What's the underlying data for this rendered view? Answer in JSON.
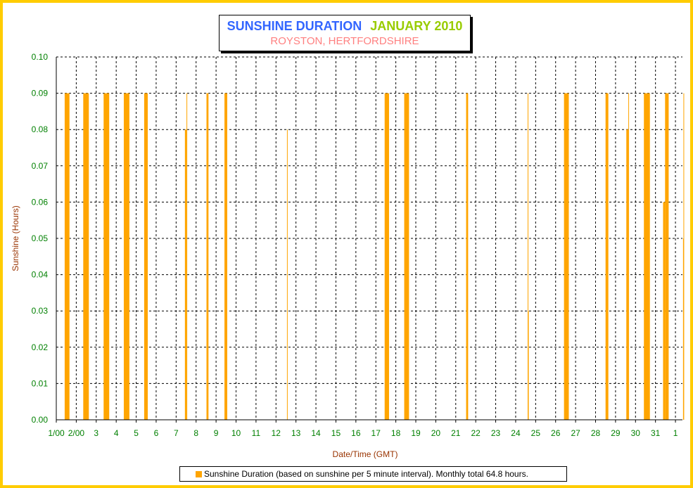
{
  "title": {
    "main": "SUNSHINE DURATION",
    "month": "JANUARY 2010",
    "subtitle": "ROYSTON, HERTFORDSHIRE"
  },
  "legend": {
    "label": "Sunshine Duration (based on sunshine per 5 minute interval). Monthly total 64.8 hours."
  },
  "colors": {
    "bars": "#ffa500",
    "axis_text": "#008000",
    "axis_title": "#993300",
    "frame": "#ffcc00"
  },
  "chart_data": {
    "type": "bar",
    "xlabel": "Date/Time (GMT)",
    "ylabel": "Sunshine (Hours)",
    "ylim": [
      0,
      0.1
    ],
    "xlim_days": [
      1,
      32.35
    ],
    "grid": true,
    "legend_position": "bottom",
    "y_ticks": [
      "0.00",
      "0.01",
      "0.02",
      "0.03",
      "0.04",
      "0.05",
      "0.06",
      "0.07",
      "0.08",
      "0.09",
      "0.10"
    ],
    "x_ticks": [
      {
        "day": 1,
        "label": "1/00"
      },
      {
        "day": 2,
        "label": "2/00"
      },
      {
        "day": 3,
        "label": "3"
      },
      {
        "day": 4,
        "label": "4"
      },
      {
        "day": 5,
        "label": "5"
      },
      {
        "day": 6,
        "label": "6"
      },
      {
        "day": 7,
        "label": "7"
      },
      {
        "day": 8,
        "label": "8"
      },
      {
        "day": 9,
        "label": "9"
      },
      {
        "day": 10,
        "label": "10"
      },
      {
        "day": 11,
        "label": "11"
      },
      {
        "day": 12,
        "label": "12"
      },
      {
        "day": 13,
        "label": "13"
      },
      {
        "day": 14,
        "label": "14"
      },
      {
        "day": 15,
        "label": "15"
      },
      {
        "day": 16,
        "label": "16"
      },
      {
        "day": 17,
        "label": "17"
      },
      {
        "day": 18,
        "label": "18"
      },
      {
        "day": 19,
        "label": "19"
      },
      {
        "day": 20,
        "label": "20"
      },
      {
        "day": 21,
        "label": "21"
      },
      {
        "day": 22,
        "label": "22"
      },
      {
        "day": 23,
        "label": "23"
      },
      {
        "day": 24,
        "label": "24"
      },
      {
        "day": 25,
        "label": "25"
      },
      {
        "day": 26,
        "label": "26"
      },
      {
        "day": 27,
        "label": "27"
      },
      {
        "day": 28,
        "label": "28"
      },
      {
        "day": 29,
        "label": "29"
      },
      {
        "day": 30,
        "label": "30"
      },
      {
        "day": 31,
        "label": "31"
      },
      {
        "day": 32,
        "label": "1"
      }
    ],
    "series": [
      {
        "name": "Sunshine Duration",
        "blocks": [
          {
            "start": 1.42,
            "end": 1.66,
            "value": 0.09
          },
          {
            "start": 2.35,
            "end": 2.63,
            "value": 0.09
          },
          {
            "start": 3.37,
            "end": 3.65,
            "value": 0.09
          },
          {
            "start": 4.38,
            "end": 4.66,
            "value": 0.09
          },
          {
            "start": 5.4,
            "end": 5.58,
            "value": 0.09
          },
          {
            "start": 7.44,
            "end": 7.52,
            "value": 0.08
          },
          {
            "start": 7.52,
            "end": 7.55,
            "value": 0.09
          },
          {
            "start": 8.52,
            "end": 8.62,
            "value": 0.09
          },
          {
            "start": 9.42,
            "end": 9.56,
            "value": 0.09
          },
          {
            "start": 12.55,
            "end": 12.57,
            "value": 0.08
          },
          {
            "start": 17.44,
            "end": 17.66,
            "value": 0.09
          },
          {
            "start": 18.42,
            "end": 18.66,
            "value": 0.09
          },
          {
            "start": 21.52,
            "end": 21.62,
            "value": 0.09
          },
          {
            "start": 24.6,
            "end": 24.62,
            "value": 0.09
          },
          {
            "start": 24.62,
            "end": 24.65,
            "value": 0.03
          },
          {
            "start": 26.42,
            "end": 26.66,
            "value": 0.09
          },
          {
            "start": 28.5,
            "end": 28.64,
            "value": 0.09
          },
          {
            "start": 29.54,
            "end": 29.64,
            "value": 0.08
          },
          {
            "start": 29.64,
            "end": 29.66,
            "value": 0.09
          },
          {
            "start": 30.42,
            "end": 30.72,
            "value": 0.09
          },
          {
            "start": 31.38,
            "end": 31.48,
            "value": 0.06
          },
          {
            "start": 31.48,
            "end": 31.66,
            "value": 0.09
          },
          {
            "start": 32.38,
            "end": 32.4,
            "value": 0.05
          },
          {
            "start": 32.4,
            "end": 32.42,
            "value": 0.09
          }
        ]
      }
    ]
  }
}
